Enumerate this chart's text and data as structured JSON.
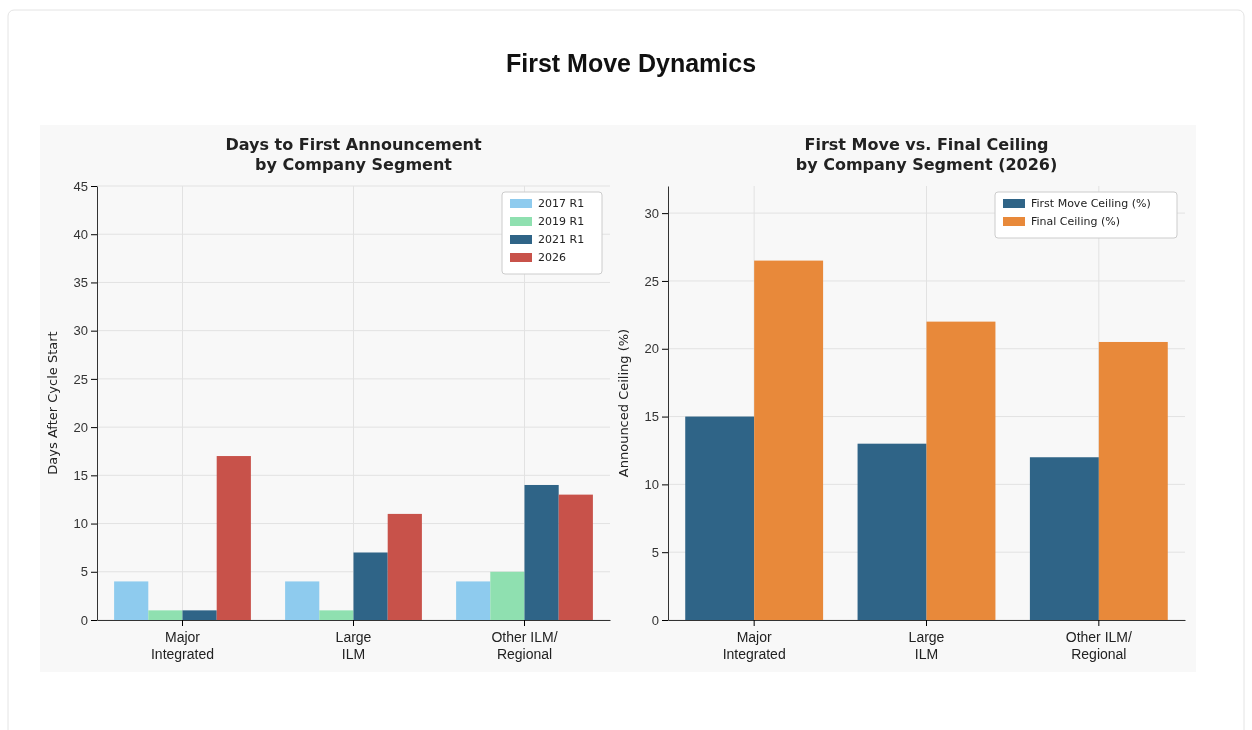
{
  "chart_data": [
    {
      "type": "other",
      "title": "First Move Dynamics"
    },
    {
      "type": "bar",
      "title": "Days to First Announcement\nby Company Segment",
      "ylabel": "Days After Cycle Start",
      "categories": [
        "Major\nIntegrated",
        "Large\nILM",
        "Other ILM/\nRegional"
      ],
      "series": [
        {
          "name": "2017 R1",
          "color": "#8ecbee",
          "values": [
            4,
            4,
            4
          ]
        },
        {
          "name": "2019 R1",
          "color": "#8fe0b0",
          "values": [
            1,
            1,
            5
          ]
        },
        {
          "name": "2021 R1",
          "color": "#2f6487",
          "values": [
            1,
            7,
            14
          ]
        },
        {
          "name": "2026",
          "color": "#c8524a",
          "values": [
            17,
            11,
            13
          ]
        }
      ],
      "ylim": [
        0,
        45
      ],
      "yticks": [
        0,
        5,
        10,
        15,
        20,
        25,
        30,
        35,
        40,
        45
      ],
      "grid": true,
      "legend": "top right"
    },
    {
      "type": "bar",
      "title": "First Move vs. Final Ceiling\nby Company Segment (2026)",
      "ylabel": "Announced Ceiling (%)",
      "categories": [
        "Major\nIntegrated",
        "Large\nILM",
        "Other ILM/\nRegional"
      ],
      "series": [
        {
          "name": "First Move Ceiling (%)",
          "color": "#2f6487",
          "values": [
            15,
            13,
            12
          ]
        },
        {
          "name": "Final Ceiling (%)",
          "color": "#e8893a",
          "values": [
            26.5,
            22,
            20.5
          ]
        }
      ],
      "ylim": [
        0,
        32
      ],
      "yticks": [
        0,
        5,
        10,
        15,
        20,
        25,
        30
      ],
      "grid": true,
      "legend": "top right"
    }
  ]
}
